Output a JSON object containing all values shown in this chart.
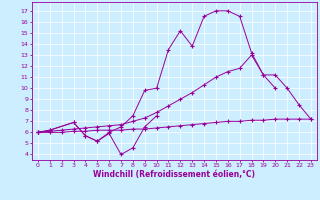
{
  "color": "#990099",
  "bg_color": "#cceeff",
  "grid_color": "#ffffff",
  "xlabel": "Windchill (Refroidissement éolien,°C)",
  "ylim": [
    3.5,
    17.8
  ],
  "xlim": [
    -0.5,
    23.5
  ],
  "yticks": [
    4,
    5,
    6,
    7,
    8,
    9,
    10,
    11,
    12,
    13,
    14,
    15,
    16,
    17
  ],
  "xticks": [
    0,
    1,
    2,
    3,
    4,
    5,
    6,
    7,
    8,
    9,
    10,
    11,
    12,
    13,
    14,
    15,
    16,
    17,
    18,
    19,
    20,
    21,
    22,
    23
  ],
  "top_x": [
    0,
    1,
    3,
    4,
    5,
    6,
    7,
    8,
    9,
    10,
    11,
    12,
    13,
    14,
    15,
    16,
    17,
    18,
    19,
    20
  ],
  "top_y": [
    6.0,
    6.2,
    6.9,
    5.7,
    5.2,
    6.0,
    6.5,
    7.5,
    9.8,
    10.0,
    13.5,
    15.2,
    13.8,
    16.5,
    17.0,
    17.0,
    16.5,
    13.2,
    11.2,
    10.0
  ],
  "mid_x": [
    0,
    1,
    2,
    3,
    4,
    5,
    6,
    7,
    8,
    9,
    10,
    11,
    12,
    13,
    14,
    15,
    16,
    17,
    18,
    19,
    20,
    21,
    22,
    23
  ],
  "mid_y": [
    6.0,
    6.1,
    6.2,
    6.3,
    6.4,
    6.5,
    6.6,
    6.7,
    7.0,
    7.3,
    7.8,
    8.4,
    9.0,
    9.6,
    10.3,
    11.0,
    11.5,
    11.8,
    13.0,
    11.2,
    11.2,
    10.0,
    8.5,
    7.2
  ],
  "bot_x": [
    0,
    1,
    3,
    4,
    5,
    6,
    7,
    8,
    9,
    10
  ],
  "bot_y": [
    6.0,
    6.2,
    6.9,
    5.7,
    5.2,
    5.9,
    4.0,
    4.6,
    6.5,
    7.5
  ],
  "flat_x": [
    0,
    1,
    2,
    3,
    4,
    5,
    6,
    7,
    8,
    9,
    10,
    11,
    12,
    13,
    14,
    15,
    16,
    17,
    18,
    19,
    20,
    21,
    22,
    23
  ],
  "flat_y": [
    6.0,
    6.0,
    6.0,
    6.1,
    6.1,
    6.2,
    6.2,
    6.2,
    6.3,
    6.3,
    6.4,
    6.5,
    6.6,
    6.7,
    6.8,
    6.9,
    7.0,
    7.0,
    7.1,
    7.1,
    7.2,
    7.2,
    7.2,
    7.2
  ]
}
